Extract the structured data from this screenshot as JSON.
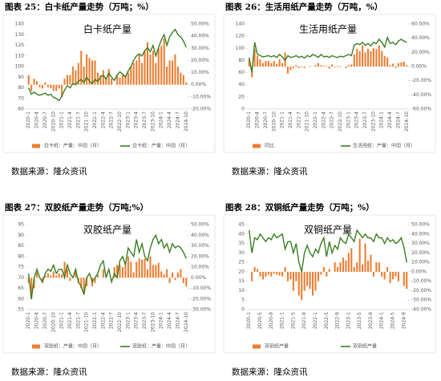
{
  "chart_data": [
    {
      "type": "bar_line",
      "caption": "图表 25：白卡纸产量走势（万吨；%）",
      "source": "数据来源：隆众资讯",
      "title": "白卡纸产量",
      "categories": [
        "2020-1",
        null,
        null,
        "2020-4",
        null,
        null,
        "2020-7",
        null,
        null,
        "2020-10",
        null,
        null,
        "2021-1",
        null,
        null,
        "2021-4",
        null,
        null,
        "2021-7",
        null,
        null,
        "2021-10",
        null,
        null,
        "2022-1",
        null,
        null,
        "2022-4",
        null,
        null,
        "2022-7",
        null,
        null,
        "2022-10",
        null,
        null,
        "2023-1",
        null,
        null,
        "2023-4",
        null,
        null,
        "2023-7",
        null,
        null,
        "2023-10",
        null,
        null,
        "2024-1",
        null,
        null,
        "2024-4",
        null,
        null,
        "2024-7",
        null,
        null,
        "2024-10"
      ],
      "series": [
        {
          "name": "白卡纸：产量：中国（月）",
          "color": "#ed7d31",
          "axis": "y2",
          "values": [
            8,
            -5,
            5,
            3,
            -2,
            -3,
            2,
            -2,
            -3,
            -5,
            -5,
            -3,
            -10,
            5,
            8,
            8,
            15,
            12,
            18,
            28,
            15,
            25,
            22,
            20,
            20,
            10,
            8,
            12,
            5,
            13,
            5,
            0,
            8,
            6,
            8,
            8,
            10,
            15,
            18,
            20,
            25,
            18,
            28,
            35,
            25,
            28,
            18,
            30,
            32,
            38,
            15,
            20,
            20,
            25,
            15,
            10,
            8,
            2
          ]
        },
        {
          "name": "白卡纸：产量：中国（月）",
          "color": "#3a7d22",
          "values": [
            80,
            74,
            76,
            74,
            73,
            74,
            75,
            73,
            74,
            71,
            70,
            68,
            72,
            78,
            82,
            80,
            84,
            83,
            86,
            88,
            85,
            90,
            86,
            84,
            88,
            86,
            90,
            92,
            88,
            94,
            90,
            87,
            92,
            95,
            93,
            90,
            96,
            100,
            106,
            110,
            112,
            110,
            115,
            118,
            114,
            120,
            110,
            118,
            125,
            130,
            120,
            128,
            132,
            135,
            130,
            128,
            124,
            118
          ]
        }
      ],
      "ylim": [
        60,
        140
      ],
      "yticks": [
        60,
        70,
        80,
        90,
        100,
        110,
        120,
        130,
        140
      ],
      "y2lim": [
        -20,
        50
      ],
      "y2ticks": [
        {
          "value": -20,
          "label": "-20.00%"
        },
        {
          "value": -10,
          "label": "-10.00%"
        },
        {
          "value": 0,
          "label": "0.00%"
        },
        {
          "value": 10,
          "label": "10.00%"
        },
        {
          "value": 20,
          "label": "20.00%"
        },
        {
          "value": 30,
          "label": "30.00%"
        },
        {
          "value": 40,
          "label": "40.00%"
        },
        {
          "value": 50,
          "label": "50.00%"
        }
      ]
    },
    {
      "type": "bar_line",
      "caption": "图表 26：生活用纸产量走势（万吨，%）",
      "source": "数据来源：隆众资讯",
      "title": "生活用纸产量",
      "categories": [
        "2020-1",
        null,
        null,
        "2020-4",
        null,
        null,
        "2020-7",
        null,
        null,
        "2020-10",
        null,
        null,
        "2021-1",
        null,
        null,
        "2021-4",
        null,
        null,
        "2021-7",
        null,
        null,
        "2021-10",
        null,
        null,
        "2022-1",
        null,
        null,
        "2022-4",
        null,
        null,
        "2022-7",
        null,
        null,
        "2022-10",
        null,
        null,
        "2023-1",
        null,
        null,
        "2023-4",
        null,
        null,
        "2023-7",
        null,
        null,
        "2023-10",
        null,
        null,
        "2024-1",
        null,
        null,
        "2024-4",
        null,
        null,
        "2024-7",
        null,
        null,
        "2024-10"
      ],
      "series": [
        {
          "name": "同比",
          "color": "#ed7d31",
          "axis": "y2",
          "values": [
            10,
            -15,
            25,
            15,
            10,
            5,
            8,
            8,
            5,
            8,
            4,
            10,
            5,
            20,
            -10,
            -5,
            -2,
            2,
            -2,
            -1,
            -2,
            0,
            1,
            0,
            2,
            5,
            2,
            1,
            1,
            -3,
            3,
            -1,
            1,
            -1,
            0,
            -2,
            2,
            3,
            17,
            25,
            22,
            30,
            20,
            25,
            22,
            26,
            25,
            30,
            22,
            15,
            13,
            2,
            4,
            -2,
            5,
            6,
            7,
            2
          ]
        },
        {
          "name": "生活用纸：产量：中国（月）",
          "color": "#3a7d22",
          "values": [
            85,
            60,
            110,
            90,
            88,
            86,
            87,
            88,
            86,
            88,
            85,
            90,
            86,
            80,
            88,
            85,
            86,
            88,
            85,
            87,
            84,
            88,
            86,
            90,
            88,
            85,
            90,
            86,
            87,
            85,
            88,
            86,
            85,
            87,
            86,
            88,
            90,
            88,
            105,
            108,
            106,
            110,
            105,
            108,
            104,
            110,
            108,
            115,
            110,
            102,
            118,
            108,
            110,
            106,
            112,
            115,
            112,
            110
          ]
        }
      ],
      "ylim": [
        0,
        140
      ],
      "yticks": [
        0,
        20,
        40,
        60,
        80,
        100,
        120,
        140
      ],
      "y2lim": [
        -60,
        60
      ],
      "y2ticks": [
        {
          "value": -60,
          "label": "-60.00%"
        },
        {
          "value": -40,
          "label": "-40.00%"
        },
        {
          "value": -20,
          "label": "-20.00%"
        },
        {
          "value": 0,
          "label": "0.00%"
        },
        {
          "value": 20,
          "label": "20.00%"
        },
        {
          "value": 40,
          "label": "40.00%"
        },
        {
          "value": 60,
          "label": "60.00%"
        }
      ]
    },
    {
      "type": "bar_line",
      "caption": "图表 27：双胶纸产量走势（万吨;%）",
      "source": "数据来源：隆众资讯",
      "title": "双胶纸产量",
      "categories": [
        "2020-1",
        null,
        null,
        "2020-4",
        null,
        null,
        "2020-7",
        null,
        null,
        "2020-10",
        null,
        null,
        "2021-1",
        null,
        null,
        "2021-4",
        null,
        null,
        "2021-7",
        null,
        null,
        "2021-10",
        null,
        null,
        "2022-1",
        null,
        null,
        "2022-4",
        null,
        null,
        "2022-7",
        null,
        null,
        "2022-10",
        null,
        null,
        "2023-1",
        null,
        null,
        "2023-4",
        null,
        null,
        "2023-7",
        null,
        null,
        "2023-10",
        null,
        null,
        "2024-1",
        null,
        null,
        "2024-4",
        null,
        null,
        "2024-7",
        null,
        null,
        "2024-10"
      ],
      "series": [
        {
          "name": "双胶纸：产量：中国（月）",
          "color": "#ed7d31",
          "axis": "y2",
          "values": [
            -5,
            -20,
            -10,
            5,
            0,
            -5,
            2,
            4,
            2,
            6,
            2,
            4,
            3,
            15,
            8,
            -3,
            0,
            8,
            -5,
            -10,
            -15,
            -8,
            0,
            -8,
            -5,
            3,
            0,
            8,
            0,
            0,
            0,
            10,
            12,
            12,
            10,
            12,
            20,
            15,
            5,
            15,
            18,
            17,
            18,
            8,
            20,
            12,
            12,
            14,
            6,
            3,
            8,
            -5,
            5,
            -2,
            5,
            8,
            -5,
            -8
          ]
        },
        {
          "name": "双胶纸：产量：中国（月）",
          "color": "#3a7d22",
          "values": [
            72,
            60,
            70,
            74,
            70,
            68,
            72,
            74,
            73,
            76,
            72,
            74,
            74,
            70,
            76,
            72,
            70,
            74,
            68,
            66,
            62,
            70,
            72,
            68,
            70,
            72,
            76,
            78,
            70,
            74,
            68,
            72,
            70,
            78,
            80,
            76,
            84,
            82,
            80,
            88,
            82,
            86,
            80,
            78,
            84,
            88,
            90,
            86,
            88,
            84,
            86,
            82,
            86,
            84,
            85,
            84,
            82,
            79
          ]
        }
      ],
      "ylim": [
        55,
        95
      ],
      "yticks": [
        55,
        60,
        65,
        70,
        75,
        80,
        85,
        90,
        95
      ],
      "y2lim": [
        -30,
        50
      ],
      "y2ticks": [
        {
          "value": -30,
          "label": "-30.00%"
        },
        {
          "value": -20,
          "label": "-20.00%"
        },
        {
          "value": -10,
          "label": "-10.00%"
        },
        {
          "value": 0,
          "label": "0.00%"
        },
        {
          "value": 10,
          "label": "10.00%"
        },
        {
          "value": 20,
          "label": "20.00%"
        },
        {
          "value": 30,
          "label": "30.00%"
        },
        {
          "value": 40,
          "label": "40.00%"
        },
        {
          "value": 50,
          "label": "50.00%"
        }
      ]
    },
    {
      "type": "bar_line",
      "caption": "图表 28：双铜纸产量走势（万吨；%）",
      "source": "数据来源：隆众资讯",
      "title": "双铜纸产量",
      "categories": [
        "2020-1",
        null,
        null,
        null,
        "2020-5",
        null,
        null,
        null,
        "2020-9",
        null,
        null,
        null,
        "2021-1",
        null,
        null,
        null,
        "2021-5",
        null,
        null,
        null,
        "2021-9",
        null,
        null,
        null,
        "2022-1",
        null,
        null,
        null,
        "2022-5",
        null,
        null,
        null,
        "2022-9",
        null,
        null,
        null,
        "2023-1",
        null,
        null,
        null,
        "2023-5",
        null,
        null,
        null,
        "2023-9",
        null,
        null,
        null,
        "2024-1",
        null,
        null,
        null,
        "2024-5",
        null,
        null,
        null,
        "2024-9",
        null
      ],
      "series": [
        {
          "name": "双铜纸产量",
          "color": "#ed7d31",
          "axis": "y2",
          "values": [
            0,
            -10,
            5,
            3,
            -5,
            -8,
            -5,
            -3,
            -5,
            -2,
            -3,
            -4,
            -5,
            5,
            -10,
            -8,
            -20,
            -10,
            -25,
            -30,
            -20,
            -15,
            -18,
            -25,
            -20,
            -10,
            -3,
            5,
            -5,
            3,
            0,
            10,
            5,
            10,
            15,
            12,
            20,
            25,
            5,
            10,
            35,
            8,
            30,
            12,
            18,
            -5,
            10,
            10,
            -5,
            -8,
            5,
            -12,
            -8,
            -5,
            -10,
            0,
            -15,
            -18
          ]
        },
        {
          "name": "双铜纸产量",
          "color": "#3a7d22",
          "values": [
            42,
            30,
            38,
            37,
            40,
            38,
            36,
            38,
            37,
            40,
            38,
            39,
            40,
            32,
            36,
            36,
            30,
            35,
            25,
            20,
            30,
            34,
            30,
            28,
            32,
            30,
            35,
            38,
            28,
            36,
            30,
            34,
            32,
            38,
            36,
            35,
            40,
            38,
            36,
            42,
            40,
            38,
            40,
            38,
            38,
            36,
            40,
            38,
            38,
            35,
            38,
            36,
            37,
            35,
            36,
            38,
            33,
            25
          ]
        }
      ],
      "ylim": [
        0,
        45
      ],
      "yticks": [
        0,
        5,
        10,
        15,
        20,
        25,
        30,
        35,
        40,
        45
      ],
      "y2lim": [
        -40,
        50
      ],
      "y2ticks": [
        {
          "value": -40,
          "label": "-40.00%"
        },
        {
          "value": -30,
          "label": "-30.00%"
        },
        {
          "value": -20,
          "label": "-20.00%"
        },
        {
          "value": -10,
          "label": "-10.00%"
        },
        {
          "value": 0,
          "label": "0.00%"
        },
        {
          "value": 10,
          "label": "10.00%"
        },
        {
          "value": 20,
          "label": "20.00%"
        },
        {
          "value": 30,
          "label": "30.00%"
        },
        {
          "value": 40,
          "label": "40.00%"
        },
        {
          "value": 50,
          "label": "50.00%"
        }
      ]
    }
  ]
}
